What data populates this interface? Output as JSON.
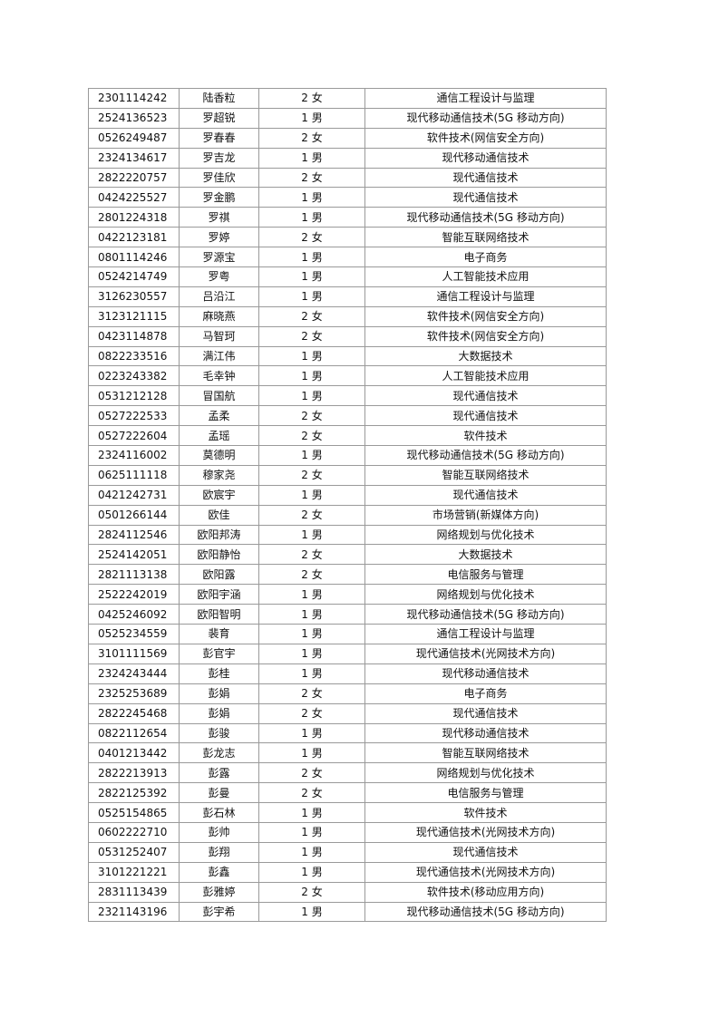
{
  "rows": [
    [
      "2301114242",
      "陆香粒",
      "2 女",
      "通信工程设计与监理"
    ],
    [
      "2524136523",
      "罗超锐",
      "1 男",
      "现代移动通信技术(5G 移动方向)"
    ],
    [
      "0526249487",
      "罗春春",
      "2 女",
      "软件技术(网信安全方向)"
    ],
    [
      "2324134617",
      "罗吉龙",
      "1 男",
      "现代移动通信技术"
    ],
    [
      "2822220757",
      "罗佳欣",
      "2 女",
      "现代通信技术"
    ],
    [
      "0424225527",
      "罗金鹏",
      "1 男",
      "现代通信技术"
    ],
    [
      "2801224318",
      "罗祺",
      "1 男",
      "现代移动通信技术(5G 移动方向)"
    ],
    [
      "0422123181",
      "罗婷",
      "2 女",
      "智能互联网络技术"
    ],
    [
      "0801114246",
      "罗源宝",
      "1 男",
      "电子商务"
    ],
    [
      "0524214749",
      "罗粤",
      "1 男",
      "人工智能技术应用"
    ],
    [
      "3126230557",
      "吕沿江",
      "1 男",
      "通信工程设计与监理"
    ],
    [
      "3123121115",
      "麻晓燕",
      "2 女",
      "软件技术(网信安全方向)"
    ],
    [
      "0423114878",
      "马智珂",
      "2 女",
      "软件技术(网信安全方向)"
    ],
    [
      "0822233516",
      "满江伟",
      "1 男",
      "大数据技术"
    ],
    [
      "0223243382",
      "毛幸钟",
      "1 男",
      "人工智能技术应用"
    ],
    [
      "0531212128",
      "冒国航",
      "1 男",
      "现代通信技术"
    ],
    [
      "0527222533",
      "孟柔",
      "2 女",
      "现代通信技术"
    ],
    [
      "0527222604",
      "孟瑶",
      "2 女",
      "软件技术"
    ],
    [
      "2324116002",
      "莫德明",
      "1 男",
      "现代移动通信技术(5G 移动方向)"
    ],
    [
      "0625111118",
      "穆家尧",
      "2 女",
      "智能互联网络技术"
    ],
    [
      "0421242731",
      "欧宸宇",
      "1 男",
      "现代通信技术"
    ],
    [
      "0501266144",
      "欧佳",
      "2 女",
      "市场营销(新媒体方向)"
    ],
    [
      "2824112546",
      "欧阳邦涛",
      "1 男",
      "网络规划与优化技术"
    ],
    [
      "2524142051",
      "欧阳静怡",
      "2 女",
      "大数据技术"
    ],
    [
      "2821113138",
      "欧阳露",
      "2 女",
      "电信服务与管理"
    ],
    [
      "2522242019",
      "欧阳宇涵",
      "1 男",
      "网络规划与优化技术"
    ],
    [
      "0425246092",
      "欧阳智明",
      "1 男",
      "现代移动通信技术(5G 移动方向)"
    ],
    [
      "0525234559",
      "裴育",
      "1 男",
      "通信工程设计与监理"
    ],
    [
      "3101111569",
      "彭官宇",
      "1 男",
      "现代通信技术(光网技术方向)"
    ],
    [
      "2324243444",
      "彭桂",
      "1 男",
      "现代移动通信技术"
    ],
    [
      "2325253689",
      "彭娟",
      "2 女",
      "电子商务"
    ],
    [
      "2822245468",
      "彭娟",
      "2 女",
      "现代通信技术"
    ],
    [
      "0822112654",
      "彭骏",
      "1 男",
      "现代移动通信技术"
    ],
    [
      "0401213442",
      "彭龙志",
      "1 男",
      "智能互联网络技术"
    ],
    [
      "2822213913",
      "彭露",
      "2 女",
      "网络规划与优化技术"
    ],
    [
      "2822125392",
      "彭曼",
      "2 女",
      "电信服务与管理"
    ],
    [
      "0525154865",
      "彭石林",
      "1 男",
      "软件技术"
    ],
    [
      "0602222710",
      "彭帅",
      "1 男",
      "现代通信技术(光网技术方向)"
    ],
    [
      "0531252407",
      "彭翔",
      "1 男",
      "现代通信技术"
    ],
    [
      "3101221221",
      "彭鑫",
      "1 男",
      "现代通信技术(光网技术方向)"
    ],
    [
      "2831113439",
      "彭雅婷",
      "2 女",
      "软件技术(移动应用方向)"
    ],
    [
      "2321143196",
      "彭宇希",
      "1 男",
      "现代移动通信技术(5G 移动方向)"
    ]
  ]
}
